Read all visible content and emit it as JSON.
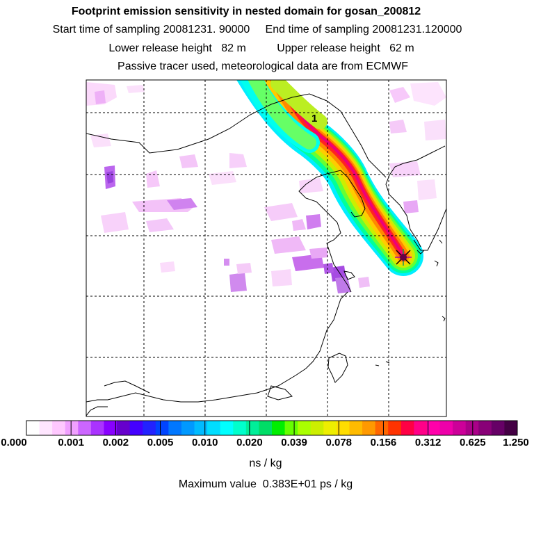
{
  "header": {
    "title": "Footprint emission sensitivity in nested domain for gosan_200812",
    "sampling_line": "Start time of sampling 20081231. 90000     End time of sampling 20081231.120000",
    "release_line": "Lower release height   82 m          Upper release height   62 m",
    "tracer_line": "Passive tracer used, meteorological data are from ECMWF"
  },
  "map": {
    "plume_label": "1",
    "receptor_marker": "x-marker-icon"
  },
  "colorbar": {
    "colors": [
      "#ffffff",
      "#ffe6ff",
      "#ffc8ff",
      "#f0a0ff",
      "#cc66ff",
      "#aa33ff",
      "#8800ff",
      "#6600cc",
      "#4400ff",
      "#2222ff",
      "#0044ff",
      "#0077ff",
      "#0099ff",
      "#00bbff",
      "#00ddff",
      "#00ffff",
      "#00ffcc",
      "#00ee99",
      "#00dd66",
      "#00ee00",
      "#66ff00",
      "#aaff00",
      "#ccee00",
      "#eeee00",
      "#ffdd00",
      "#ffbb00",
      "#ff9900",
      "#ff6600",
      "#ff3300",
      "#ff0044",
      "#ff0088",
      "#ff00aa",
      "#ee00aa",
      "#cc0099",
      "#aa0088",
      "#880077",
      "#660066",
      "#440044"
    ],
    "tick_labels": [
      "0.000",
      "0.001",
      "0.002",
      "0.005",
      "0.010",
      "0.020",
      "0.039",
      "0.078",
      "0.156",
      "0.312",
      "0.625",
      "1.250"
    ],
    "unit": "ns / kg"
  },
  "footer": {
    "max_value": "Maximum value  0.383E+01 ps / kg"
  }
}
